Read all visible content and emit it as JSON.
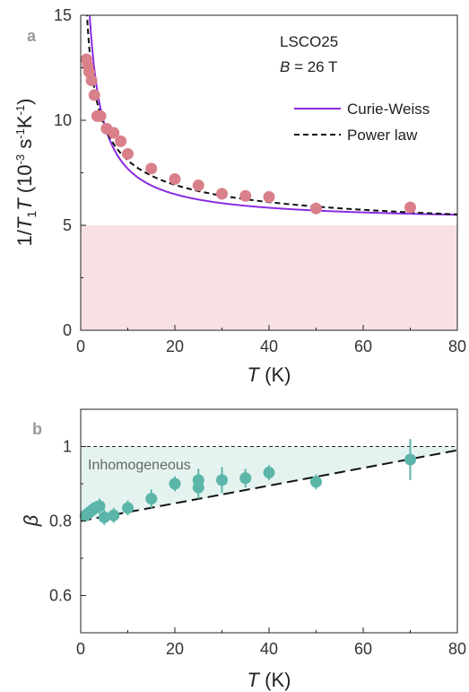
{
  "colors": {
    "curie_weiss": "#8A2BE2",
    "power_law": "#111111",
    "points_a": "#D9808A",
    "shade_a": "#F8E1E3",
    "points_b": "#5BB5A8",
    "shade_b": "#E4F3F0",
    "fit_b": "#111111"
  },
  "chart_data": [
    {
      "type": "scatter",
      "panel_label": "a",
      "xlabel_italic": "T",
      "xlabel_unit": " (K)",
      "ylabel_parts": {
        "prefix": "1/",
        "t": "T",
        "sub": "1",
        "t2": "T",
        "unit_open": " (10",
        "exp1": "-3",
        "mid": " s",
        "exp2": "-1",
        "mid2": "K",
        "exp3": "-1",
        "close": ")"
      },
      "xlim": [
        0,
        80
      ],
      "ylim": [
        0,
        15
      ],
      "xticks": [
        0,
        20,
        40,
        60,
        80
      ],
      "yticks": [
        0,
        5,
        10,
        15
      ],
      "annotation_sample": "LSCO25",
      "annotation_field_var": "B",
      "annotation_field_rest": " = 26 T",
      "shaded_band": {
        "y_from": 0,
        "y_to": 5
      },
      "legend": [
        {
          "label": "Curie-Weiss",
          "style": "solid"
        },
        {
          "label": "Power law",
          "style": "dashed"
        }
      ],
      "series": [
        {
          "kind": "points",
          "x": [
            1.2,
            1.5,
            1.8,
            2.3,
            2.9,
            3.5,
            4.2,
            5.5,
            7.0,
            8.5,
            10,
            15,
            20,
            25,
            30,
            35,
            40,
            50,
            70
          ],
          "y": [
            12.9,
            12.6,
            12.3,
            11.9,
            11.2,
            10.2,
            10.2,
            9.6,
            9.4,
            9.0,
            8.4,
            7.7,
            7.2,
            6.9,
            6.5,
            6.4,
            6.35,
            5.8,
            5.85
          ]
        }
      ],
      "curves": {
        "curie_weiss": {
          "a": 5.16,
          "c": 27.6,
          "theta": 0.9
        },
        "power_law": {
          "a": 4.11,
          "b": 12.6,
          "p": 0.5
        }
      }
    },
    {
      "type": "scatter",
      "panel_label": "b",
      "xlabel_italic": "T",
      "xlabel_unit": " (K)",
      "ylabel": "β",
      "xlim": [
        0,
        80
      ],
      "ylim": [
        0.5,
        1.1
      ],
      "xticks": [
        0,
        20,
        40,
        60,
        80
      ],
      "yticks": [
        0.6,
        0.8,
        1
      ],
      "ytick_labels": [
        "0.6",
        "0.8",
        "1"
      ],
      "annotation": "Inhomogeneous",
      "reference_line": 1.0,
      "fit_line": {
        "x": [
          0,
          80
        ],
        "y": [
          0.8,
          0.99
        ]
      },
      "series": [
        {
          "kind": "points_with_errors",
          "x": [
            1.0,
            1.5,
            2.0,
            2.5,
            3.0,
            3.5,
            4.0,
            5.0,
            7.0,
            10,
            15,
            20,
            25,
            25,
            30,
            35,
            40,
            50,
            70
          ],
          "y": [
            0.815,
            0.82,
            0.825,
            0.83,
            0.835,
            0.838,
            0.84,
            0.81,
            0.815,
            0.835,
            0.86,
            0.9,
            0.89,
            0.91,
            0.91,
            0.915,
            0.93,
            0.905,
            0.965
          ],
          "err": [
            0.015,
            0.015,
            0.015,
            0.015,
            0.015,
            0.015,
            0.02,
            0.02,
            0.02,
            0.02,
            0.025,
            0.02,
            0.03,
            0.03,
            0.035,
            0.025,
            0.02,
            0.02,
            0.055
          ]
        }
      ]
    }
  ]
}
